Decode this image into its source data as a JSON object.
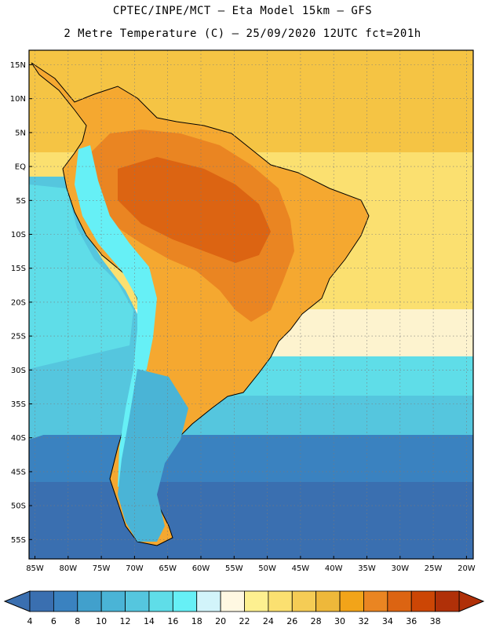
{
  "header": {
    "line1": "CPTEC/INPE/MCT –  Eta Model 15km – GFS",
    "line2": "2 Metre Temperature (C) – 25/09/2020 12UTC fct=201h"
  },
  "axes": {
    "lat_labels": [
      "15N",
      "10N",
      "5N",
      "EQ",
      "5S",
      "10S",
      "15S",
      "20S",
      "25S",
      "30S",
      "35S",
      "40S",
      "45S",
      "50S",
      "55S"
    ],
    "lon_labels": [
      "85W",
      "80W",
      "75W",
      "70W",
      "65W",
      "60W",
      "55W",
      "50W",
      "45W",
      "40W",
      "35W",
      "30W",
      "25W",
      "20W"
    ]
  },
  "colorbar": {
    "labels": [
      "4",
      "6",
      "8",
      "10",
      "12",
      "14",
      "16",
      "18",
      "20",
      "22",
      "24",
      "26",
      "28",
      "30",
      "32",
      "34",
      "36",
      "38"
    ],
    "colors": [
      "#3a6fb0",
      "#3a82c0",
      "#41a0cc",
      "#4ab4d6",
      "#55c6de",
      "#5fdde8",
      "#66f0f6",
      "#d2f4fa",
      "#fff8e2",
      "#fdf090",
      "#fbe070",
      "#f5cc55",
      "#eeb83a",
      "#f2a419",
      "#ea8522",
      "#dc6412",
      "#cc4605",
      "#b03008"
    ],
    "left_arrow_color": "#3a6fb0",
    "right_arrow_color": "#b03008"
  },
  "map_colors": {
    "ocean_tropical": "#f5c444",
    "ocean_subtropical": "#fbe070",
    "ocean_warm_pale": "#fdf3cf",
    "ocean_mild": "#5fdde8",
    "ocean_cool": "#55c6de",
    "ocean_cold": "#3a82c0",
    "ocean_coldest": "#3a6fb0",
    "land_hot": "#dc6412",
    "land_warm": "#ea8522",
    "land_mild": "#f5a830",
    "andes": "#66f0f6",
    "patagonia": "#4ab4d6"
  }
}
